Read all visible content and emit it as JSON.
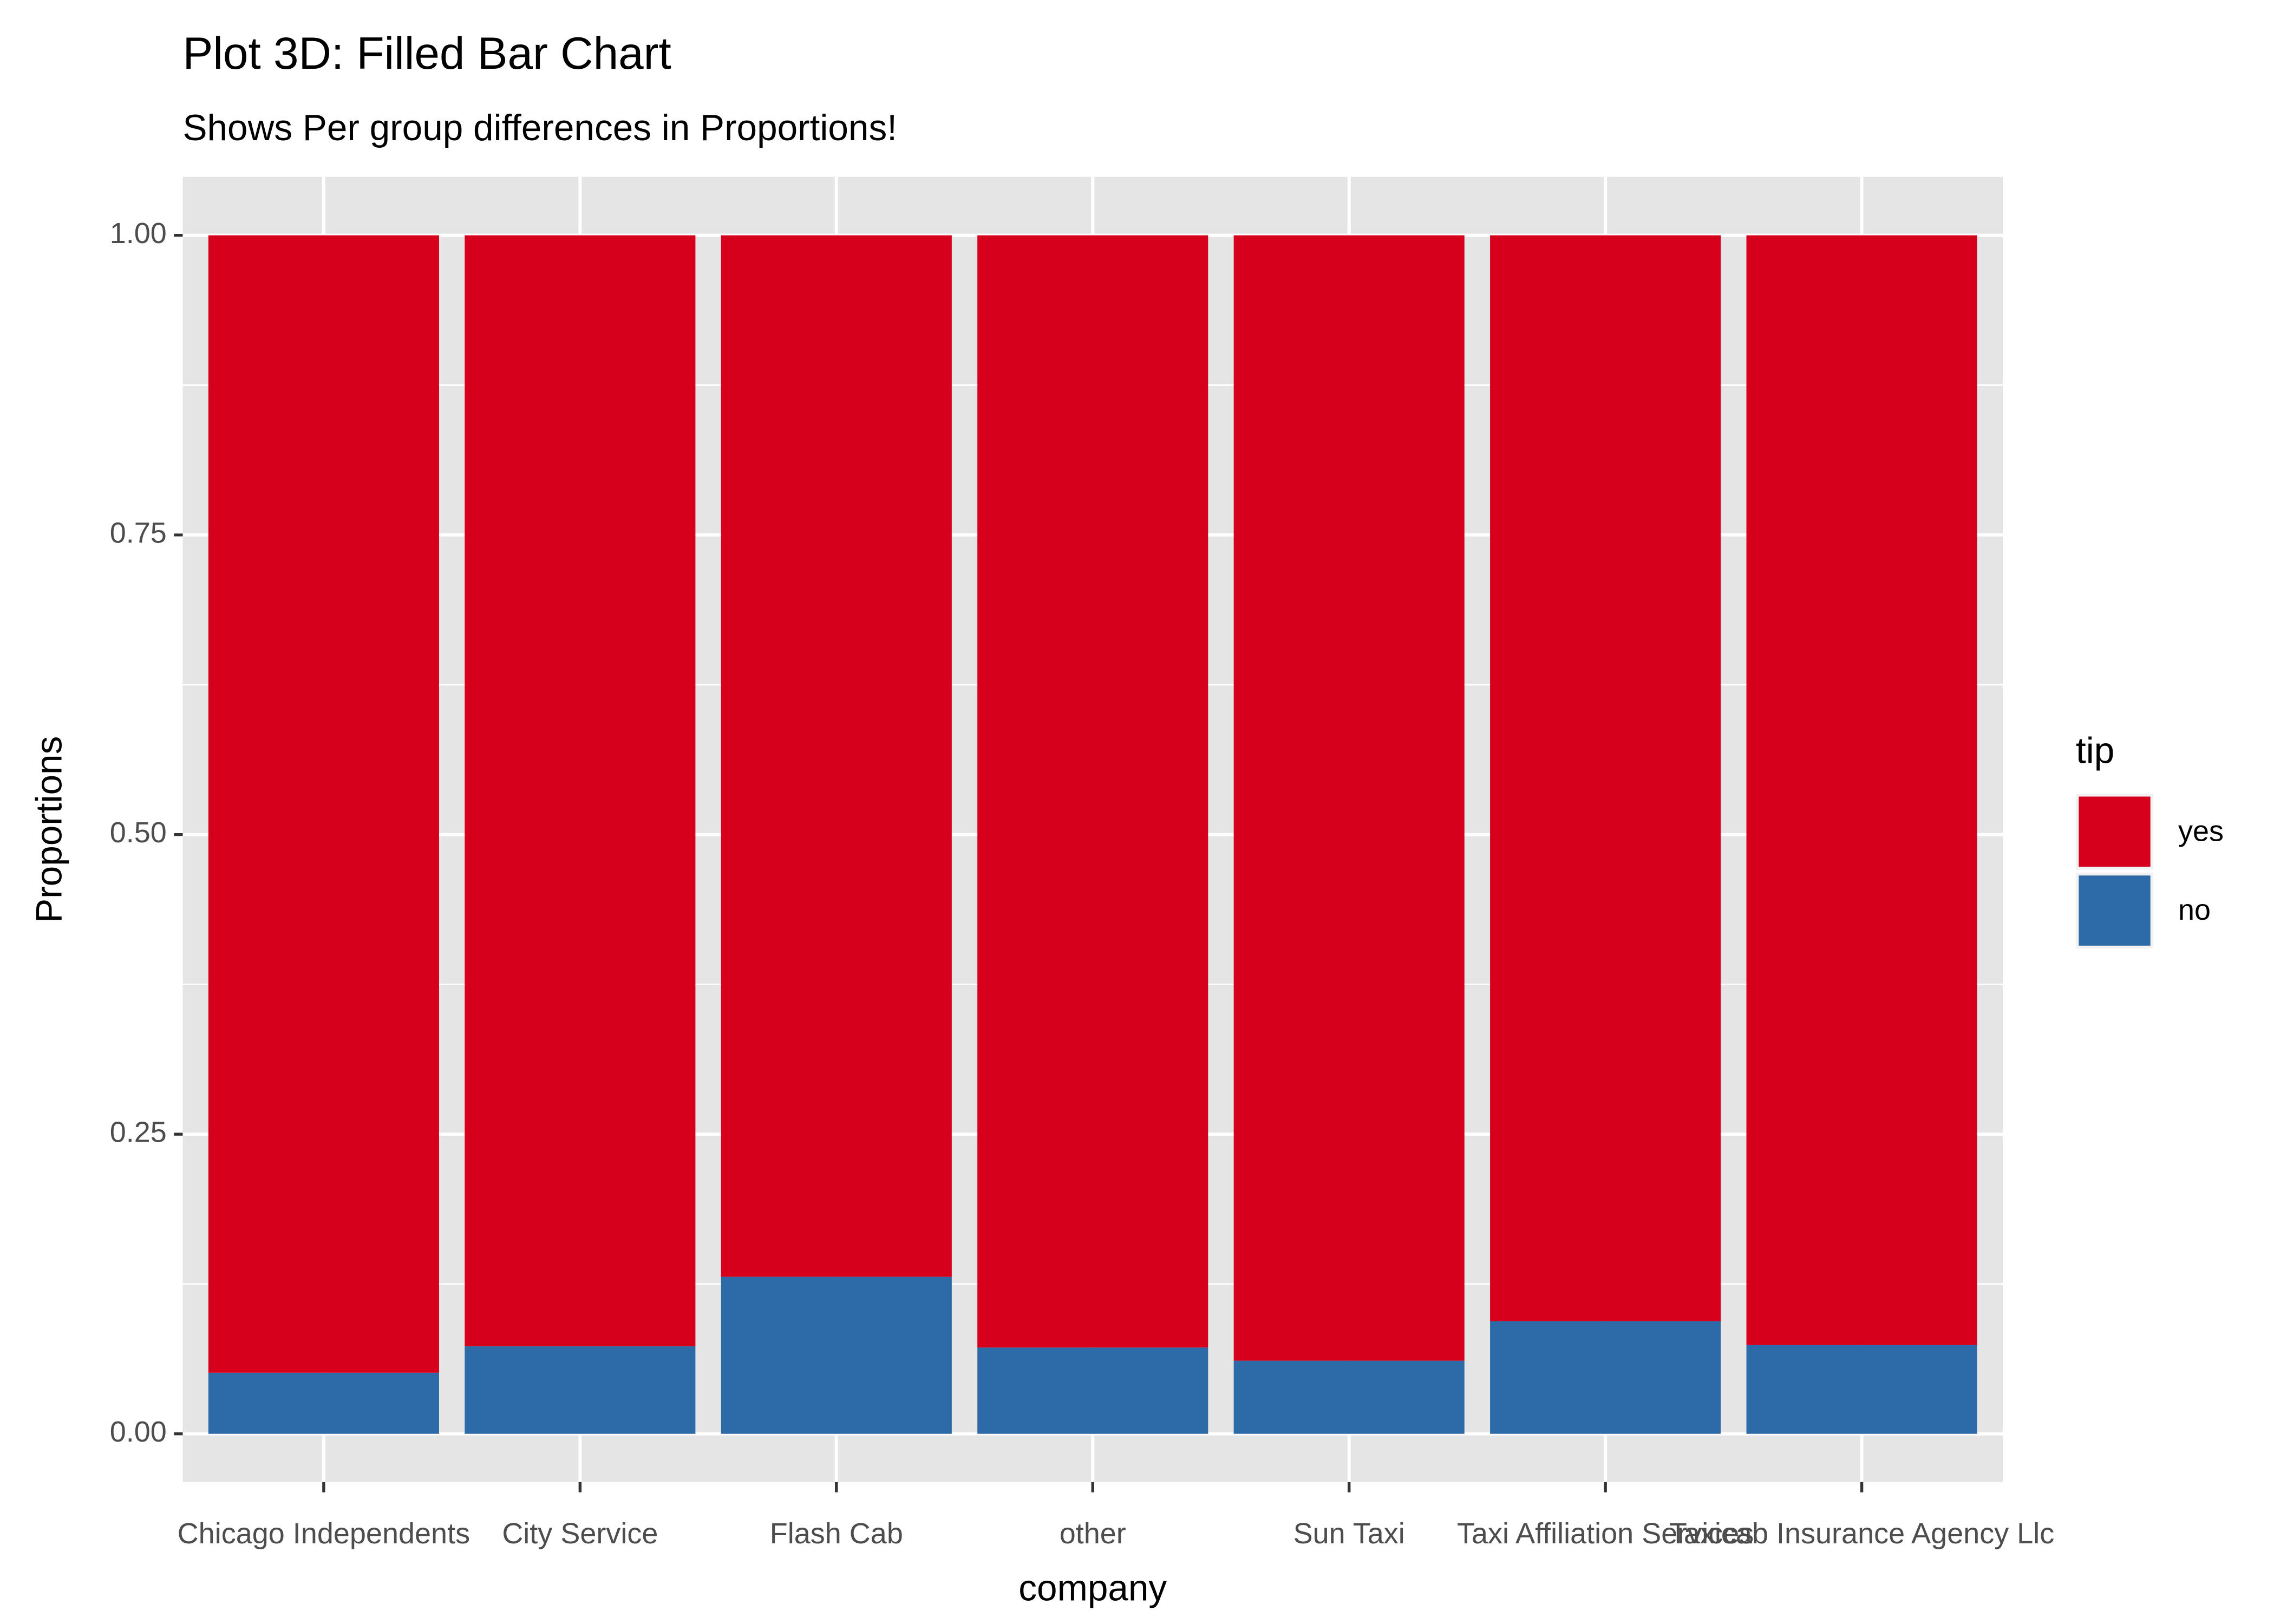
{
  "chart_data": {
    "type": "bar",
    "stacked": "fill",
    "title": "Plot 3D: Filled Bar Chart",
    "subtitle": "Shows Per group differences in Proportions!",
    "xlabel": "company",
    "ylabel": "Proportions",
    "ylim": [
      0,
      1
    ],
    "y_ticks": [
      "0.00",
      "0.25",
      "0.50",
      "0.75",
      "1.00"
    ],
    "grid": true,
    "categories": [
      "Chicago Independents",
      "City Service",
      "Flash Cab",
      "other",
      "Sun Taxi",
      "Taxi Affiliation Services",
      "Taxicab Insurance Agency Llc"
    ],
    "series": [
      {
        "name": "no",
        "color": "#2C6AA8",
        "values": [
          0.051,
          0.073,
          0.131,
          0.072,
          0.061,
          0.094,
          0.074
        ]
      },
      {
        "name": "yes",
        "color": "#D7001C",
        "values": [
          0.949,
          0.927,
          0.869,
          0.928,
          0.939,
          0.906,
          0.926
        ]
      }
    ],
    "legend": {
      "title": "tip",
      "placement": "right",
      "order": [
        "yes",
        "no"
      ]
    },
    "panel_background": "#E5E5E5",
    "grid_color": "#FFFFFF"
  }
}
